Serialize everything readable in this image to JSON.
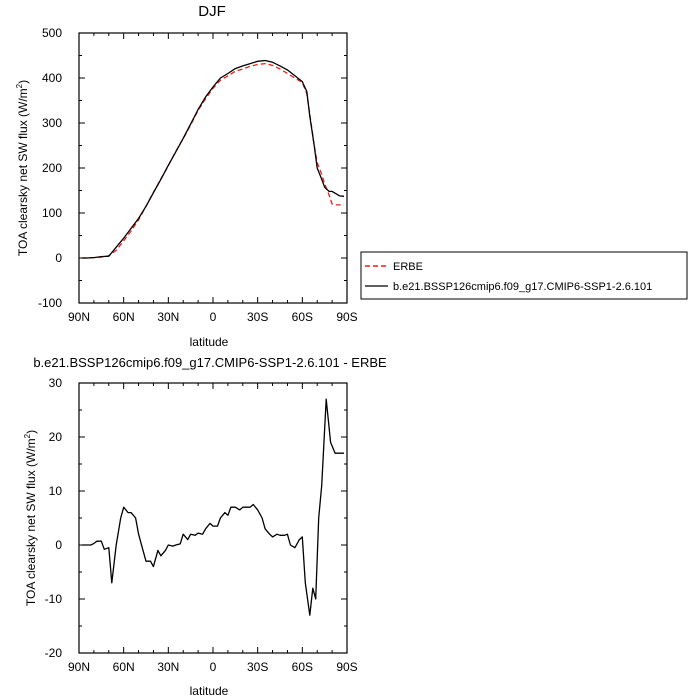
{
  "chart_data": [
    {
      "type": "line",
      "title": "DJF",
      "xlabel": "latitude",
      "ylabel": "TOA clearsky net SW flux (W/m",
      "ylabel_sup": "2",
      "ylabel_end": ")",
      "xlim": [
        90,
        -90
      ],
      "ylim": [
        -100,
        500
      ],
      "xticks": [
        90,
        60,
        30,
        0,
        -30,
        -60,
        -90
      ],
      "xtick_labels": [
        "90N",
        "60N",
        "30N",
        "0",
        "30S",
        "60S",
        "90S"
      ],
      "yticks": [
        -100,
        0,
        100,
        200,
        300,
        400,
        500
      ],
      "ytick_labels": [
        "-100",
        "0",
        "100",
        "200",
        "300",
        "400",
        "500"
      ],
      "legend_position": "right",
      "series": [
        {
          "name": "ERBE",
          "color": "#e8201b",
          "dashed": true,
          "x": [
            88,
            85,
            80,
            75,
            70,
            65,
            60,
            55,
            50,
            45,
            40,
            35,
            30,
            25,
            20,
            15,
            10,
            5,
            0,
            -5,
            -10,
            -15,
            -20,
            -25,
            -30,
            -35,
            -40,
            -45,
            -50,
            -55,
            -60,
            -63,
            -65,
            -68,
            -70,
            -73,
            -75,
            -78,
            -80,
            -83,
            -85,
            -88
          ],
          "y": [
            0,
            0,
            1,
            2,
            5,
            17,
            38,
            60,
            85,
            115,
            146,
            176,
            205,
            237,
            265,
            296,
            328,
            354,
            377,
            395,
            405,
            415,
            420,
            426,
            430,
            432,
            428,
            420,
            410,
            400,
            390,
            365,
            320,
            250,
            212,
            186,
            165,
            140,
            120,
            118,
            118,
            118
          ]
        },
        {
          "name": "b.e21.BSSP126cmip6.f09_g17.CMIP6-SSP1-2.6.101",
          "color": "#000000",
          "dashed": false,
          "x": [
            88,
            85,
            80,
            75,
            70,
            65,
            60,
            55,
            50,
            45,
            40,
            35,
            30,
            25,
            20,
            15,
            10,
            5,
            0,
            -5,
            -10,
            -15,
            -20,
            -25,
            -30,
            -35,
            -40,
            -45,
            -50,
            -55,
            -60,
            -63,
            -65,
            -68,
            -70,
            -73,
            -75,
            -78,
            -80,
            -83,
            -85,
            -88
          ],
          "y": [
            0,
            0,
            1,
            3,
            4,
            24,
            44,
            66,
            88,
            115,
            145,
            175,
            206,
            236,
            266,
            298,
            330,
            358,
            380,
            400,
            410,
            421,
            427,
            432,
            437,
            439,
            435,
            427,
            418,
            405,
            392,
            370,
            315,
            250,
            200,
            175,
            157,
            148,
            148,
            142,
            138,
            137
          ]
        }
      ]
    },
    {
      "type": "line",
      "title": "b.e21.BSSP126cmip6.f09_g17.CMIP6-SSP1-2.6.101 - ERBE",
      "xlabel": "latitude",
      "ylabel": "TOA clearsky net SW flux (W/m",
      "ylabel_sup": "2",
      "ylabel_end": ")",
      "xlim": [
        90,
        -90
      ],
      "ylim": [
        -20,
        30
      ],
      "xticks": [
        90,
        60,
        30,
        0,
        -30,
        -60,
        -90
      ],
      "xtick_labels": [
        "90N",
        "60N",
        "30N",
        "0",
        "30S",
        "60S",
        "90S"
      ],
      "yticks": [
        -20,
        -10,
        0,
        10,
        20,
        30
      ],
      "ytick_labels": [
        "-20",
        "-10",
        "0",
        "10",
        "20",
        "30"
      ],
      "series": [
        {
          "color": "#000000",
          "x": [
            88,
            85,
            82,
            80,
            78,
            75,
            73,
            70,
            68,
            65,
            62,
            60,
            57,
            55,
            52,
            50,
            47,
            45,
            42,
            40,
            37,
            35,
            32,
            30,
            27,
            25,
            22,
            20,
            17,
            15,
            12,
            10,
            7,
            5,
            2,
            0,
            -3,
            -5,
            -8,
            -10,
            -12,
            -15,
            -18,
            -20,
            -22,
            -25,
            -27,
            -30,
            -33,
            -35,
            -38,
            -40,
            -43,
            -45,
            -48,
            -50,
            -52,
            -55,
            -58,
            -60,
            -62,
            -65,
            -67,
            -69,
            -71,
            -73,
            -76,
            -79,
            -82,
            -84,
            -86,
            -88
          ],
          "y": [
            0,
            0,
            0,
            0.3,
            0.7,
            0.7,
            -0.8,
            -0.5,
            -7,
            0,
            5,
            7,
            6,
            6,
            5,
            2,
            -1,
            -3,
            -3,
            -4,
            -1,
            -2,
            -1,
            0,
            -0.2,
            0,
            0.2,
            2,
            1,
            2,
            1.8,
            2.2,
            2,
            3,
            4,
            3.5,
            3.5,
            5,
            6,
            5.5,
            7,
            7,
            6.5,
            7,
            7,
            7,
            7.5,
            6.5,
            5,
            3,
            2,
            1.5,
            2,
            1.8,
            1.8,
            2,
            0,
            -0.5,
            1,
            1.5,
            -7,
            -13,
            -8,
            -10,
            5,
            11,
            27,
            19,
            17,
            17,
            17,
            17
          ]
        }
      ]
    }
  ]
}
